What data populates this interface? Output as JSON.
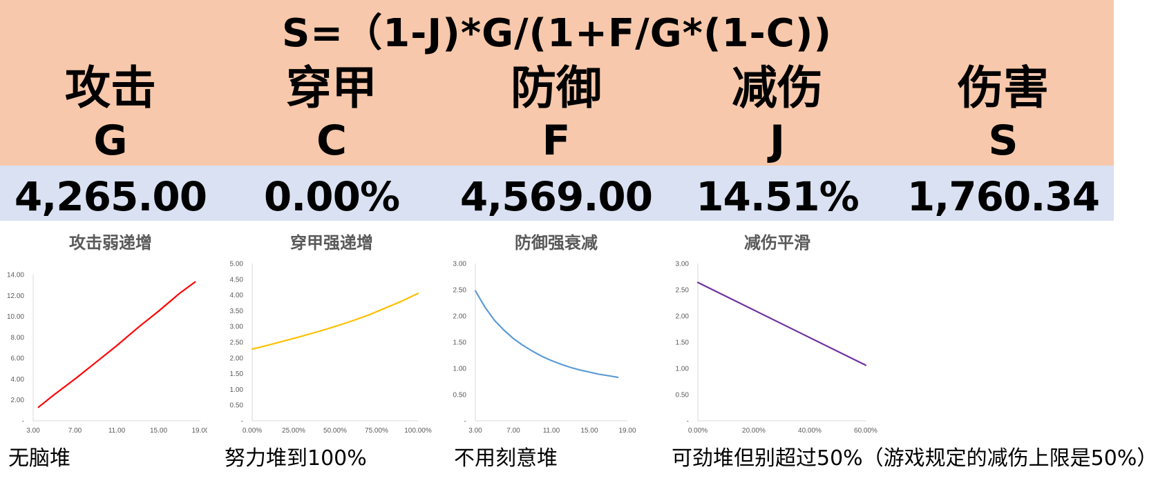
{
  "formula": "S=（1-J)*G/(1+F/G*(1-C))",
  "columns": [
    {
      "name": "攻击",
      "symbol": "G",
      "value": "4,265.00"
    },
    {
      "name": "穿甲",
      "symbol": "C",
      "value": "0.00%"
    },
    {
      "name": "防御",
      "symbol": "F",
      "value": "4,569.00"
    },
    {
      "name": "减伤",
      "symbol": "J",
      "value": "14.51%"
    },
    {
      "name": "伤害",
      "symbol": "S",
      "value": "1,760.34"
    }
  ],
  "notes": [
    "无脑堆",
    "努力堆到100%",
    "不用刻意堆",
    "可劲堆但别超过50%（游戏规定的减伤上限是50%）"
  ],
  "chart_data": [
    {
      "type": "line",
      "title": "攻击弱递增",
      "color": "#ff0000",
      "x_ticks": [
        "3.00",
        "7.00",
        "11.00",
        "15.00",
        "19.00"
      ],
      "y_ticks": [
        "-",
        "2.00",
        "4.00",
        "6.00",
        "8.00",
        "10.00",
        "12.00",
        "14.00"
      ],
      "xlim": [
        3,
        19
      ],
      "ylim": [
        0,
        14
      ],
      "x": [
        3.5,
        5,
        7,
        9,
        11,
        13,
        15,
        17,
        18.5
      ],
      "y": [
        1.3,
        2.5,
        4.0,
        5.6,
        7.2,
        8.9,
        10.5,
        12.2,
        13.3
      ]
    },
    {
      "type": "line",
      "title": "穿甲强递增",
      "color": "#ffc000",
      "x_ticks": [
        "0.00%",
        "25.00%",
        "50.00%",
        "75.00%",
        "100.00%"
      ],
      "y_ticks": [
        "-",
        "0.50",
        "1.00",
        "1.50",
        "2.00",
        "2.50",
        "3.00",
        "3.50",
        "4.00",
        "4.50",
        "5.00"
      ],
      "xlim": [
        0,
        100
      ],
      "ylim": [
        0,
        5
      ],
      "x": [
        0,
        10,
        20,
        30,
        40,
        50,
        60,
        70,
        80,
        90,
        100
      ],
      "y": [
        2.28,
        2.41,
        2.55,
        2.69,
        2.84,
        3.0,
        3.17,
        3.36,
        3.58,
        3.8,
        4.05
      ]
    },
    {
      "type": "line",
      "title": "防御强衰减",
      "color": "#5b9bd5",
      "x_ticks": [
        "3.00",
        "7.00",
        "11.00",
        "15.00",
        "19.00"
      ],
      "y_ticks": [
        "-",
        "0.50",
        "1.00",
        "1.50",
        "2.00",
        "2.50",
        "3.00"
      ],
      "xlim": [
        3,
        19
      ],
      "ylim": [
        0,
        3
      ],
      "x": [
        3,
        4,
        5,
        6,
        7,
        8,
        9,
        10,
        11,
        12,
        13,
        14,
        15,
        16,
        17,
        18
      ],
      "y": [
        2.48,
        2.17,
        1.92,
        1.73,
        1.57,
        1.44,
        1.33,
        1.23,
        1.15,
        1.08,
        1.02,
        0.97,
        0.93,
        0.89,
        0.86,
        0.83
      ]
    },
    {
      "type": "line",
      "title": "减伤平滑",
      "color": "#7030a0",
      "x_ticks": [
        "0.00%",
        "20.00%",
        "40.00%",
        "60.00%"
      ],
      "y_ticks": [
        "-",
        "0.50",
        "1.00",
        "1.50",
        "2.00",
        "2.50",
        "3.00"
      ],
      "xlim": [
        0,
        60
      ],
      "ylim": [
        0,
        3
      ],
      "x": [
        0,
        60
      ],
      "y": [
        2.64,
        1.06
      ]
    }
  ]
}
